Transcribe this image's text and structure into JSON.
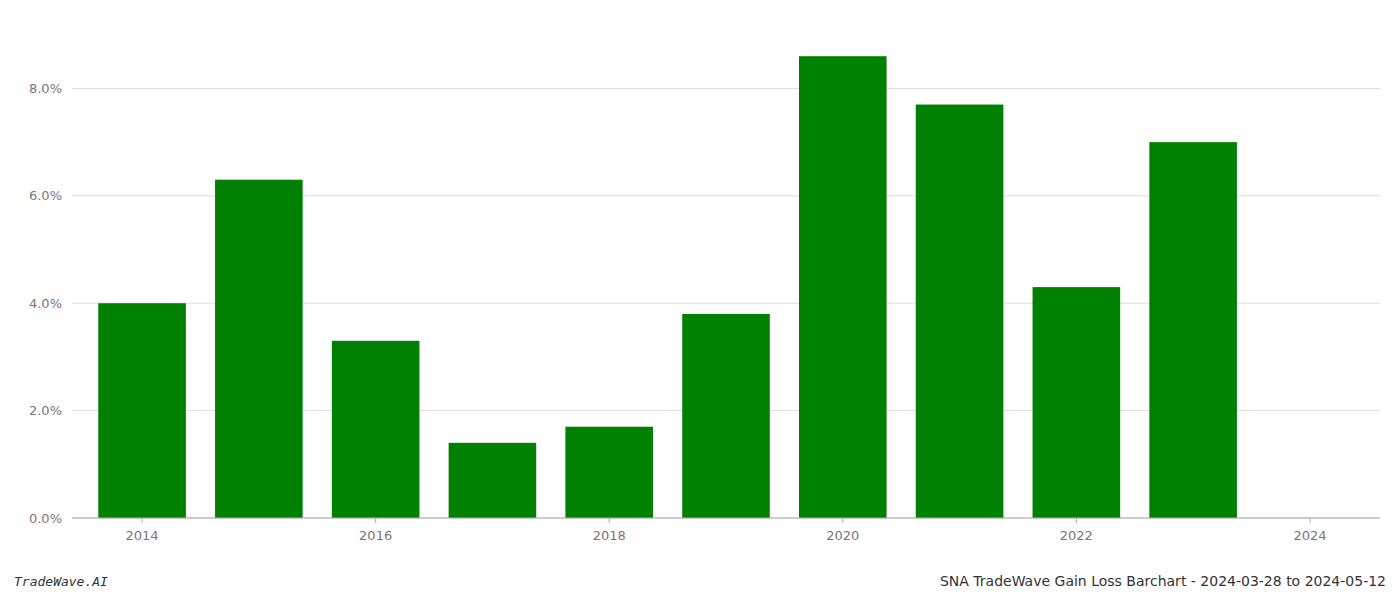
{
  "chart_data": {
    "type": "bar",
    "title": "SNA TradeWave Gain Loss Barchart - 2024-03-28 to 2024-05-12",
    "annotations": [
      "TradeWave.AI"
    ],
    "x": [
      2014,
      2015,
      2016,
      2017,
      2018,
      2019,
      2020,
      2021,
      2022,
      2023
    ],
    "values": [
      0.04,
      0.063,
      0.033,
      0.014,
      0.017,
      0.038,
      0.086,
      0.077,
      0.043,
      0.07
    ],
    "color": "#008000",
    "xlim": [
      2013.4,
      2024.6
    ],
    "xticks": [
      2014,
      2016,
      2018,
      2020,
      2022,
      2024
    ],
    "ylim": [
      0,
      0.092
    ],
    "yticks": [
      {
        "value": 0.0,
        "label": "0.0%"
      },
      {
        "value": 0.02,
        "label": "2.0%"
      },
      {
        "value": 0.04,
        "label": "4.0%"
      },
      {
        "value": 0.06,
        "label": "6.0%"
      },
      {
        "value": 0.08,
        "label": "8.0%"
      }
    ],
    "grid": true
  }
}
